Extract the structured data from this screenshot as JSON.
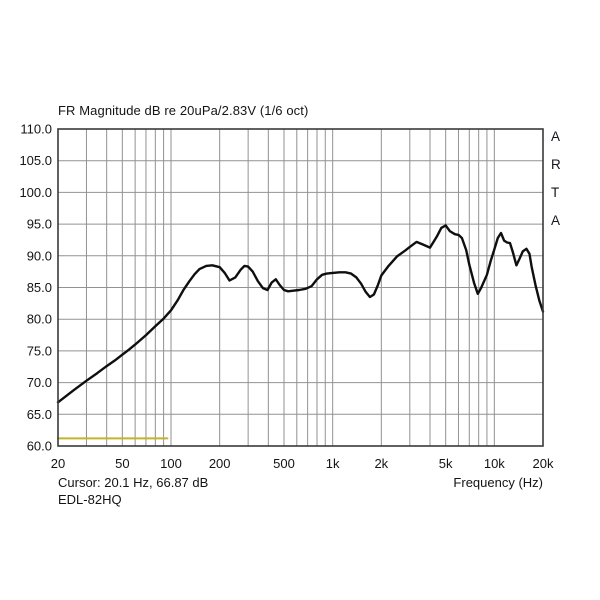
{
  "chart": {
    "title": "FR Magnitude dB re 20uPa/2.83V (1/6 oct)",
    "watermark": "ARTA",
    "x_axis_title": "Frequency (Hz)",
    "cursor_readout": "Cursor: 20.1 Hz, 66.87 dB",
    "device_label": "EDL-82HQ"
  },
  "colors": {
    "background": "#ffffff",
    "grid": "#929292",
    "border": "#3a3a3a",
    "curve": "#0f0f0f",
    "overlay": "#c3b32e",
    "text": "#141414"
  },
  "chart_data": {
    "type": "line",
    "title": "FR Magnitude dB re 20uPa/2.83V (1/6 oct)",
    "xlabel": "Frequency (Hz)",
    "ylabel": "dB re 20uPa/2.83V",
    "x_scale": "log",
    "x_range": [
      20,
      20000
    ],
    "y_range": [
      60,
      110
    ],
    "grid": true,
    "y_ticks": [
      {
        "v": 110,
        "label": "110.0"
      },
      {
        "v": 105,
        "label": "105.0"
      },
      {
        "v": 100,
        "label": "100.0"
      },
      {
        "v": 95,
        "label": "95.0"
      },
      {
        "v": 90,
        "label": "90.0"
      },
      {
        "v": 85,
        "label": "85.0"
      },
      {
        "v": 80,
        "label": "80.0"
      },
      {
        "v": 75,
        "label": "75.0"
      },
      {
        "v": 70,
        "label": "70.0"
      },
      {
        "v": 65,
        "label": "65.0"
      },
      {
        "v": 60,
        "label": "60.0"
      }
    ],
    "x_ticks": [
      {
        "f": 20,
        "label": "20"
      },
      {
        "f": 50,
        "label": "50"
      },
      {
        "f": 100,
        "label": "100"
      },
      {
        "f": 200,
        "label": "200"
      },
      {
        "f": 500,
        "label": "500"
      },
      {
        "f": 1000,
        "label": "1k"
      },
      {
        "f": 2000,
        "label": "2k"
      },
      {
        "f": 5000,
        "label": "5k"
      },
      {
        "f": 10000,
        "label": "10k"
      },
      {
        "f": 20000,
        "label": "20k"
      }
    ],
    "series": [
      {
        "name": "frequency-response-magnitude",
        "color": "#0f0f0f",
        "width": 2.4,
        "points": [
          [
            20,
            66.9
          ],
          [
            25,
            68.8
          ],
          [
            30,
            70.3
          ],
          [
            35,
            71.5
          ],
          [
            40,
            72.6
          ],
          [
            45,
            73.5
          ],
          [
            50,
            74.4
          ],
          [
            55,
            75.2
          ],
          [
            60,
            76.0
          ],
          [
            70,
            77.5
          ],
          [
            80,
            78.9
          ],
          [
            90,
            80.1
          ],
          [
            100,
            81.4
          ],
          [
            110,
            83.0
          ],
          [
            120,
            84.7
          ],
          [
            130,
            86.0
          ],
          [
            140,
            87.1
          ],
          [
            150,
            87.9
          ],
          [
            165,
            88.4
          ],
          [
            180,
            88.5
          ],
          [
            200,
            88.2
          ],
          [
            215,
            87.3
          ],
          [
            230,
            86.1
          ],
          [
            250,
            86.6
          ],
          [
            270,
            87.8
          ],
          [
            285,
            88.4
          ],
          [
            300,
            88.3
          ],
          [
            320,
            87.5
          ],
          [
            345,
            86.0
          ],
          [
            370,
            84.9
          ],
          [
            395,
            84.6
          ],
          [
            420,
            85.8
          ],
          [
            445,
            86.3
          ],
          [
            470,
            85.4
          ],
          [
            500,
            84.6
          ],
          [
            530,
            84.4
          ],
          [
            570,
            84.5
          ],
          [
            620,
            84.6
          ],
          [
            680,
            84.8
          ],
          [
            740,
            85.2
          ],
          [
            800,
            86.3
          ],
          [
            860,
            87.0
          ],
          [
            920,
            87.2
          ],
          [
            1000,
            87.3
          ],
          [
            1100,
            87.4
          ],
          [
            1200,
            87.4
          ],
          [
            1300,
            87.2
          ],
          [
            1400,
            86.6
          ],
          [
            1500,
            85.6
          ],
          [
            1600,
            84.3
          ],
          [
            1700,
            83.5
          ],
          [
            1800,
            83.9
          ],
          [
            1900,
            85.3
          ],
          [
            2000,
            86.9
          ],
          [
            2200,
            88.3
          ],
          [
            2500,
            89.9
          ],
          [
            2800,
            90.8
          ],
          [
            3000,
            91.4
          ],
          [
            3300,
            92.2
          ],
          [
            3600,
            91.8
          ],
          [
            4000,
            91.3
          ],
          [
            4400,
            93.0
          ],
          [
            4700,
            94.4
          ],
          [
            5000,
            94.8
          ],
          [
            5300,
            93.9
          ],
          [
            5700,
            93.4
          ],
          [
            6000,
            93.3
          ],
          [
            6300,
            92.8
          ],
          [
            6700,
            90.9
          ],
          [
            7000,
            88.6
          ],
          [
            7500,
            85.7
          ],
          [
            7900,
            84.0
          ],
          [
            8300,
            85.0
          ],
          [
            9000,
            87.0
          ],
          [
            9500,
            89.2
          ],
          [
            10000,
            91.0
          ],
          [
            10500,
            92.8
          ],
          [
            11000,
            93.6
          ],
          [
            11500,
            92.4
          ],
          [
            12000,
            92.1
          ],
          [
            12500,
            92.0
          ],
          [
            13000,
            90.6
          ],
          [
            13700,
            88.5
          ],
          [
            14300,
            89.5
          ],
          [
            15000,
            90.7
          ],
          [
            15800,
            91.1
          ],
          [
            16500,
            90.3
          ],
          [
            17000,
            88.3
          ],
          [
            18000,
            85.3
          ],
          [
            19000,
            82.9
          ],
          [
            20000,
            81.2
          ]
        ]
      },
      {
        "name": "low-level-overlay-trace",
        "color": "#c3b32e",
        "width": 2,
        "points": [
          [
            20,
            61.2
          ],
          [
            95,
            61.2
          ]
        ]
      }
    ]
  }
}
